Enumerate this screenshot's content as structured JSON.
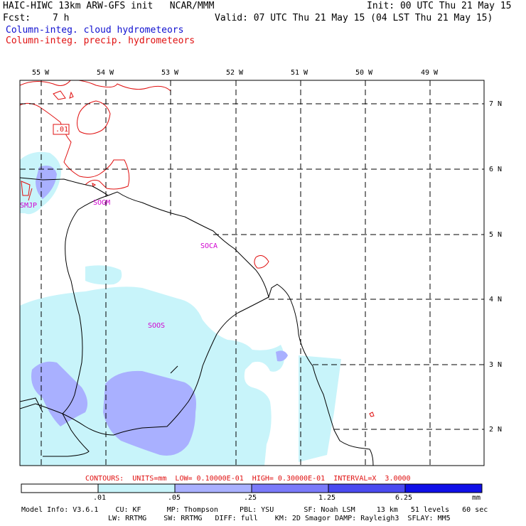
{
  "header": {
    "title": "HAIC-HIWC 13km ARW-GFS init   NCAR/MMM",
    "init": "Init: 00 UTC Thu 21 May 15",
    "fcst_label": "Fcst:",
    "fcst_value": "7 h",
    "valid": "Valid: 07 UTC Thu 21 May 15 (04 LST Thu 21 May 15)",
    "legend_cloud": "Column-integ. cloud hydrometeors",
    "legend_precip": "Column-integ. precip. hydrometeors"
  },
  "map": {
    "lon_labels": [
      "55 W",
      "54 W",
      "53 W",
      "52 W",
      "51 W",
      "50 W",
      "49 W"
    ],
    "lat_labels": [
      "7 N",
      "6 N",
      "5 N",
      "4 N",
      "3 N",
      "2 N"
    ],
    "stations": [
      "SMJP",
      "SOGM",
      "SOCA",
      "SOOS"
    ],
    "contour_label": ".01",
    "colors": {
      "cloud_light": "#c8f4fa",
      "cloud_mid": "#a9a9ff",
      "precip_contour": "#e01010",
      "station": "#d000d0",
      "coast": "#000000"
    }
  },
  "footer": {
    "contours_line": "CONTOURS:  UNITS=mm  LOW= 0.10000E-01  HIGH= 0.30000E-01  INTERVAL=X  3.0000",
    "colorbar": {
      "labels": [
        ".01",
        ".05",
        ".25",
        "1.25",
        "6.25"
      ],
      "unit": "mm",
      "colors": [
        "#ffffff",
        "#c8f4fa",
        "#a9b0ff",
        "#7a7afa",
        "#4a4af0",
        "#1010e8"
      ]
    },
    "model_info_1": "Model Info: V3.6.1    CU: KF      MP: Thompson     PBL: YSU       SF: Noah LSM     13 km   51 levels   60 sec",
    "model_info_2": "LW: RRTMG    SW: RRTMG   DIFF: full    KM: 2D Smagor DAMP: Rayleigh3  SFLAY: MM5"
  }
}
